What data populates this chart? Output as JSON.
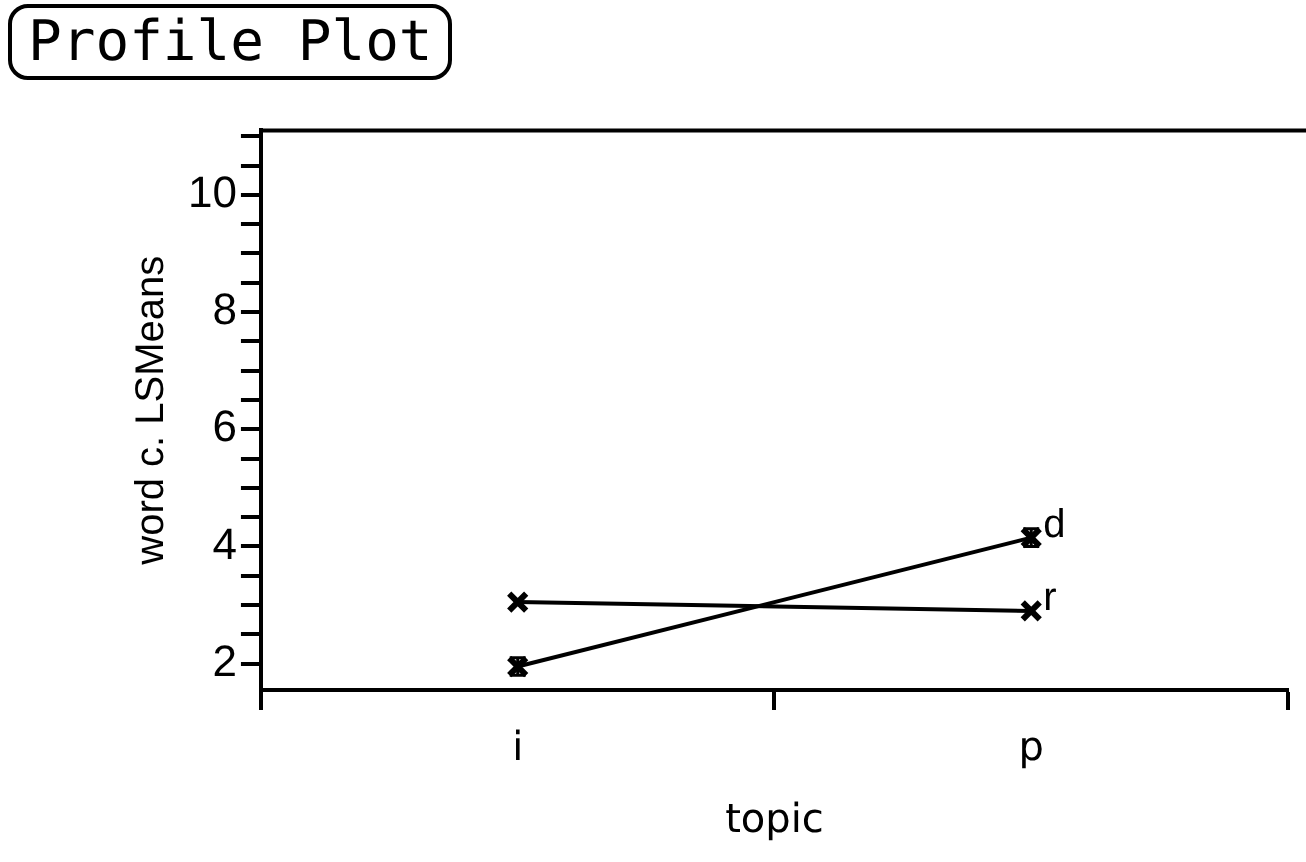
{
  "chart_data": {
    "type": "line",
    "title": "Profile Plot",
    "xlabel": "topic",
    "ylabel": "word c. LSMeans",
    "categories": [
      "i",
      "p"
    ],
    "series": [
      {
        "name": "d",
        "color": "#000000",
        "values": [
          1.95,
          4.15
        ],
        "errors": [
          0.15,
          0.15
        ],
        "marker": "cross"
      },
      {
        "name": "r",
        "color": "#000000",
        "values": [
          3.05,
          2.9
        ],
        "marker": "cross"
      }
    ],
    "ylim": [
      1.55,
      11.1
    ],
    "yticks": [
      2,
      {
        "value": 2.5,
        "label": null
      },
      {
        "value": 3,
        "label": null
      },
      {
        "value": 3.5,
        "label": null
      },
      4,
      {
        "value": 4.5,
        "label": null
      },
      {
        "value": 5,
        "label": null
      },
      {
        "value": 5.5,
        "label": null
      },
      6,
      {
        "value": 6.5,
        "label": null
      },
      {
        "value": 7,
        "label": null
      },
      {
        "value": 7.5,
        "label": null
      },
      8,
      {
        "value": 8.5,
        "label": null
      },
      {
        "value": 9,
        "label": null
      },
      {
        "value": 9.5,
        "label": null
      },
      10,
      {
        "value": 10.5,
        "label": null
      },
      {
        "value": 11,
        "label": null
      }
    ],
    "grid": false,
    "legend": false,
    "line_style": "solid"
  }
}
